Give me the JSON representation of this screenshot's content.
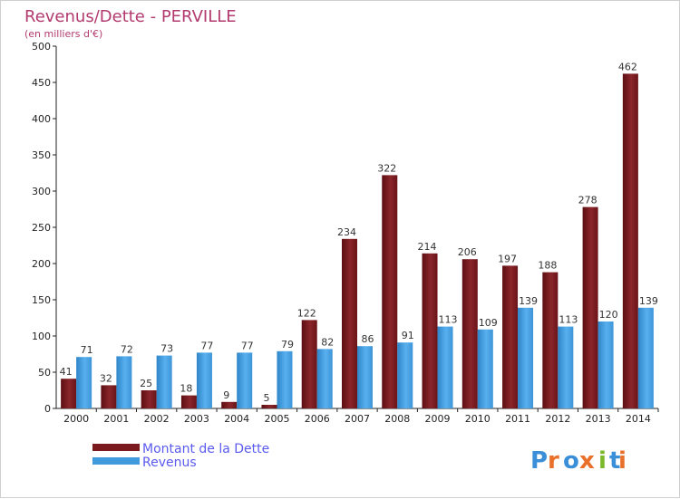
{
  "chart_data": {
    "type": "bar",
    "title": "Revenus/Dette - PERVILLE",
    "subtitle": "(en milliers d'€)",
    "categories": [
      "2000",
      "2001",
      "2002",
      "2003",
      "2004",
      "2005",
      "2006",
      "2007",
      "2008",
      "2009",
      "2010",
      "2011",
      "2012",
      "2013",
      "2014"
    ],
    "series": [
      {
        "name": "Montant de la Dette",
        "values": [
          41,
          32,
          25,
          18,
          9,
          5,
          122,
          234,
          322,
          214,
          206,
          197,
          188,
          278,
          462
        ]
      },
      {
        "name": "Revenus",
        "values": [
          71,
          72,
          73,
          77,
          77,
          79,
          82,
          86,
          91,
          113,
          109,
          139,
          113,
          120,
          139
        ]
      }
    ],
    "ylim": [
      0,
      500
    ],
    "yticks": [
      0,
      50,
      100,
      150,
      200,
      250,
      300,
      350,
      400,
      450,
      500
    ],
    "grid": false,
    "legend_position": "bottom-left"
  },
  "colors": {
    "debt": "#7a1a1e",
    "revenue": "#3f9bde",
    "title": "#b23a6e",
    "legend_text": "#5a5af0"
  },
  "logo": {
    "text": "Proxiti",
    "colors": [
      "#3a8fd8",
      "#e8702a",
      "#3a8fd8",
      "#e8702a",
      "#7ab82a",
      "#3a8fd8",
      "#e8702a"
    ]
  }
}
